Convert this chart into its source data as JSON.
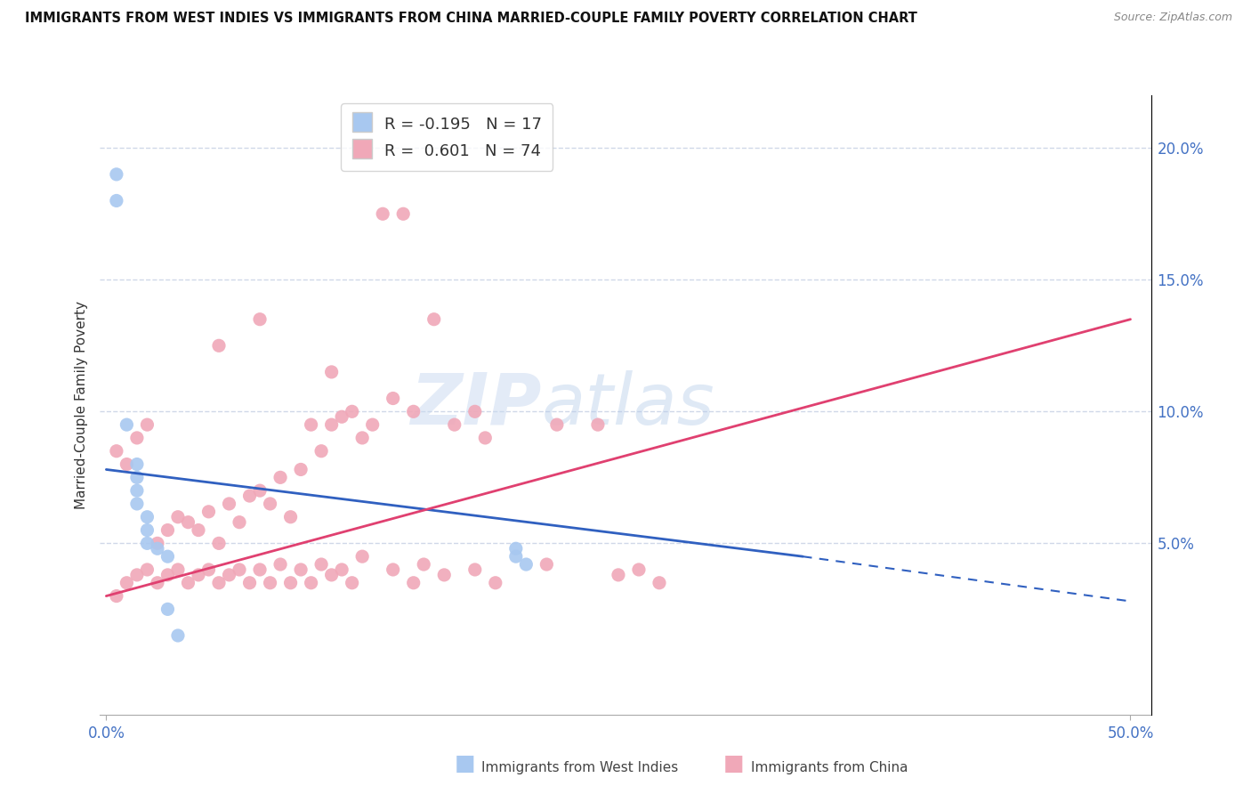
{
  "title": "IMMIGRANTS FROM WEST INDIES VS IMMIGRANTS FROM CHINA MARRIED-COUPLE FAMILY POVERTY CORRELATION CHART",
  "source": "Source: ZipAtlas.com",
  "ylabel": "Married-Couple Family Poverty",
  "west_indies_R": "-0.195",
  "west_indies_N": "17",
  "china_R": "0.601",
  "china_N": "74",
  "west_indies_color": "#a8c8f0",
  "china_color": "#f0a8b8",
  "west_indies_line_color": "#3060c0",
  "china_line_color": "#e04070",
  "background_color": "#ffffff",
  "grid_color": "#d0d8e8",
  "ytick_color": "#4472c4",
  "xtick_color": "#4472c4",
  "wi_scatter_x": [
    0.5,
    0.5,
    1.0,
    1.5,
    1.5,
    1.5,
    1.5,
    2.0,
    2.0,
    2.0,
    2.5,
    3.0,
    3.0,
    3.5,
    20.0,
    20.0,
    20.5
  ],
  "wi_scatter_y": [
    19.0,
    18.0,
    9.5,
    8.0,
    7.5,
    7.0,
    6.5,
    6.0,
    5.5,
    5.0,
    4.8,
    4.5,
    2.5,
    1.5,
    4.8,
    4.5,
    4.2
  ],
  "ch_scatter_x": [
    0.5,
    1.0,
    1.5,
    2.0,
    2.5,
    3.0,
    3.5,
    4.0,
    4.5,
    5.0,
    5.5,
    6.0,
    6.5,
    7.0,
    7.5,
    8.0,
    8.5,
    9.0,
    9.5,
    10.0,
    10.5,
    11.0,
    11.5,
    12.0,
    12.5,
    13.0,
    14.0,
    15.0,
    17.0,
    18.0,
    18.5,
    22.0,
    24.0,
    0.5,
    1.0,
    1.5,
    2.0,
    2.5,
    3.0,
    3.5,
    4.0,
    4.5,
    5.0,
    5.5,
    6.0,
    6.5,
    7.0,
    7.5,
    8.0,
    8.5,
    9.0,
    9.5,
    10.0,
    10.5,
    11.0,
    11.5,
    12.0,
    12.5,
    14.0,
    15.0,
    15.5,
    16.5,
    18.0,
    19.0,
    21.5,
    25.0,
    26.0,
    27.0,
    5.5,
    7.5,
    11.0,
    13.5,
    14.5,
    16.0
  ],
  "ch_scatter_y": [
    8.5,
    8.0,
    9.0,
    9.5,
    5.0,
    5.5,
    6.0,
    5.8,
    5.5,
    6.2,
    5.0,
    6.5,
    5.8,
    6.8,
    7.0,
    6.5,
    7.5,
    6.0,
    7.8,
    9.5,
    8.5,
    9.5,
    9.8,
    10.0,
    9.0,
    9.5,
    10.5,
    10.0,
    9.5,
    10.0,
    9.0,
    9.5,
    9.5,
    3.0,
    3.5,
    3.8,
    4.0,
    3.5,
    3.8,
    4.0,
    3.5,
    3.8,
    4.0,
    3.5,
    3.8,
    4.0,
    3.5,
    4.0,
    3.5,
    4.2,
    3.5,
    4.0,
    3.5,
    4.2,
    3.8,
    4.0,
    3.5,
    4.5,
    4.0,
    3.5,
    4.2,
    3.8,
    4.0,
    3.5,
    4.2,
    3.8,
    4.0,
    3.5,
    12.5,
    13.5,
    11.5,
    17.5,
    17.5,
    13.5
  ],
  "wi_line_x0": 0,
  "wi_line_y0": 7.8,
  "wi_line_x1": 34,
  "wi_line_y1": 4.5,
  "wi_dash_x0": 34,
  "wi_dash_y0": 4.5,
  "wi_dash_x1": 50,
  "wi_dash_y1": 2.8,
  "ch_line_x0": 0,
  "ch_line_y0": 3.0,
  "ch_line_x1": 50,
  "ch_line_y1": 13.5,
  "xlim_left": -0.3,
  "xlim_right": 51,
  "ylim_bottom": -1.5,
  "ylim_top": 22,
  "yticks": [
    5,
    10,
    15,
    20
  ],
  "ytick_labels": [
    "5.0%",
    "10.0%",
    "15.0%",
    "20.0%"
  ],
  "xticks": [
    0,
    50
  ],
  "xtick_labels": [
    "0.0%",
    "50.0%"
  ],
  "legend_wi_label": "R = -0.195   N = 17",
  "legend_ch_label": "R =  0.601   N = 74",
  "bottom_legend_wi": "Immigrants from West Indies",
  "bottom_legend_ch": "Immigrants from China",
  "watermark": "ZIPatlas"
}
